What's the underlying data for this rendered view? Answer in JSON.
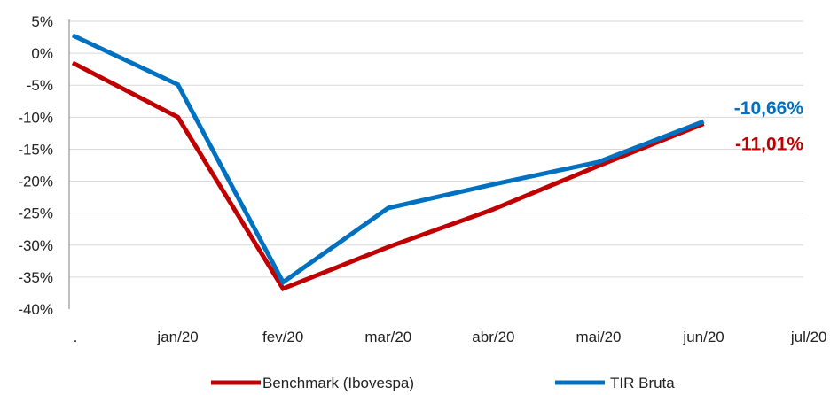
{
  "chart_data": {
    "type": "line",
    "categories": [
      ".",
      "jan/20",
      "fev/20",
      "mar/20",
      "abr/20",
      "mai/20",
      "jun/20",
      "jul/20"
    ],
    "y_ticks": [
      "5%",
      "0%",
      "-5%",
      "-10%",
      "-15%",
      "-20%",
      "-25%",
      "-30%",
      "-35%",
      "-40%"
    ],
    "ylim": [
      -40,
      5
    ],
    "grid": true,
    "legend": "bottom",
    "series": [
      {
        "name": "Benchmark (Ibovespa)",
        "color": "#c00000",
        "x": [
          ".",
          "jan/20",
          "fev/20",
          "mar/20",
          "abr/20",
          "mai/20",
          "jun/20"
        ],
        "values": [
          -1.5,
          -10.0,
          -36.8,
          -30.3,
          -24.4,
          -17.6,
          -11.01
        ],
        "end_label": "-11,01%"
      },
      {
        "name": "TIR Bruta",
        "color": "#0070c0",
        "x": [
          ".",
          "jan/20",
          "fev/20",
          "mar/20",
          "abr/20",
          "mai/20",
          "jun/20"
        ],
        "values": [
          2.8,
          -4.9,
          -35.8,
          -24.2,
          -20.5,
          -17.0,
          -10.66
        ],
        "end_label": "-10,66%"
      }
    ]
  }
}
